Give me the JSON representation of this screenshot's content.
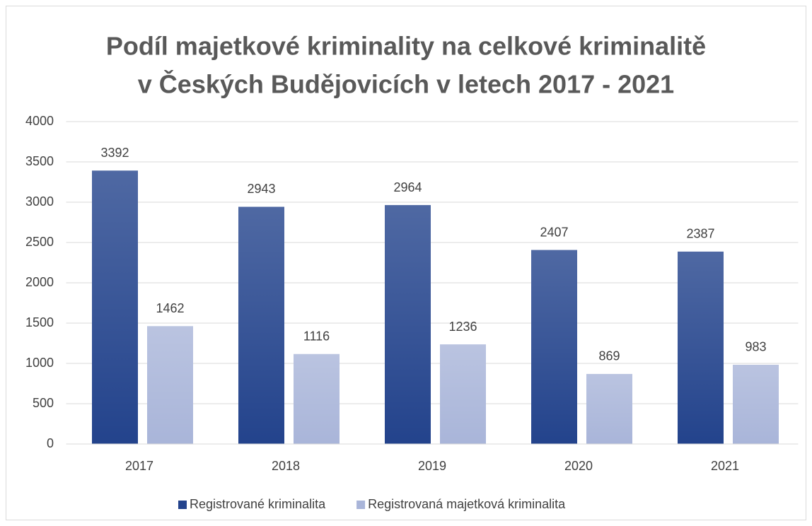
{
  "chart_data": {
    "type": "bar",
    "title": [
      "Podíl majetkové kriminality na celkové kriminalitě",
      "v Českých Budějovicích v letech 2017 - 2021"
    ],
    "categories": [
      "2017",
      "2018",
      "2019",
      "2020",
      "2021"
    ],
    "series": [
      {
        "name": "Registrované kriminalita",
        "color": "#23438c",
        "values": [
          3392,
          2943,
          2964,
          2407,
          2387
        ]
      },
      {
        "name": "Registrovaná majetková kriminalita",
        "color": "#a9b5d9",
        "values": [
          1462,
          1116,
          1236,
          869,
          983
        ]
      }
    ],
    "ylim": [
      0,
      4000
    ],
    "yticks": [
      0,
      500,
      1000,
      1500,
      2000,
      2500,
      3000,
      3500,
      4000
    ],
    "grid": true,
    "legend": "bottom"
  }
}
